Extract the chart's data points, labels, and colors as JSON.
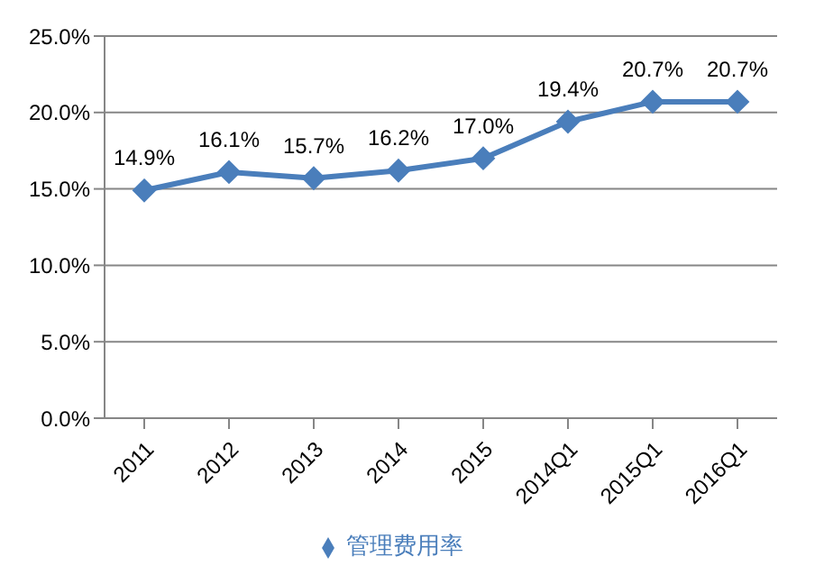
{
  "chart_data": {
    "type": "line",
    "categories": [
      "2011",
      "2012",
      "2013",
      "2014",
      "2015",
      "2014Q1",
      "2015Q1",
      "2016Q1"
    ],
    "series": [
      {
        "name": "管理费用率",
        "color": "#4a7ebb",
        "values": [
          14.9,
          16.1,
          15.7,
          16.2,
          17.0,
          19.4,
          20.7,
          20.7
        ],
        "value_labels": [
          "14.9%",
          "16.1%",
          "15.7%",
          "16.2%",
          "17.0%",
          "19.4%",
          "20.7%",
          "20.7%"
        ]
      }
    ],
    "ylim": [
      0,
      25
    ],
    "yticks": [
      {
        "value": 0,
        "label": "0.0%"
      },
      {
        "value": 5,
        "label": "5.0%"
      },
      {
        "value": 10,
        "label": "10.0%"
      },
      {
        "value": 15,
        "label": "15.0%"
      },
      {
        "value": 20,
        "label": "20.0%"
      },
      {
        "value": 25,
        "label": "25.0%"
      }
    ],
    "grid": "y",
    "legend": "bottom",
    "marker": "diamond",
    "line_style": "solid"
  }
}
